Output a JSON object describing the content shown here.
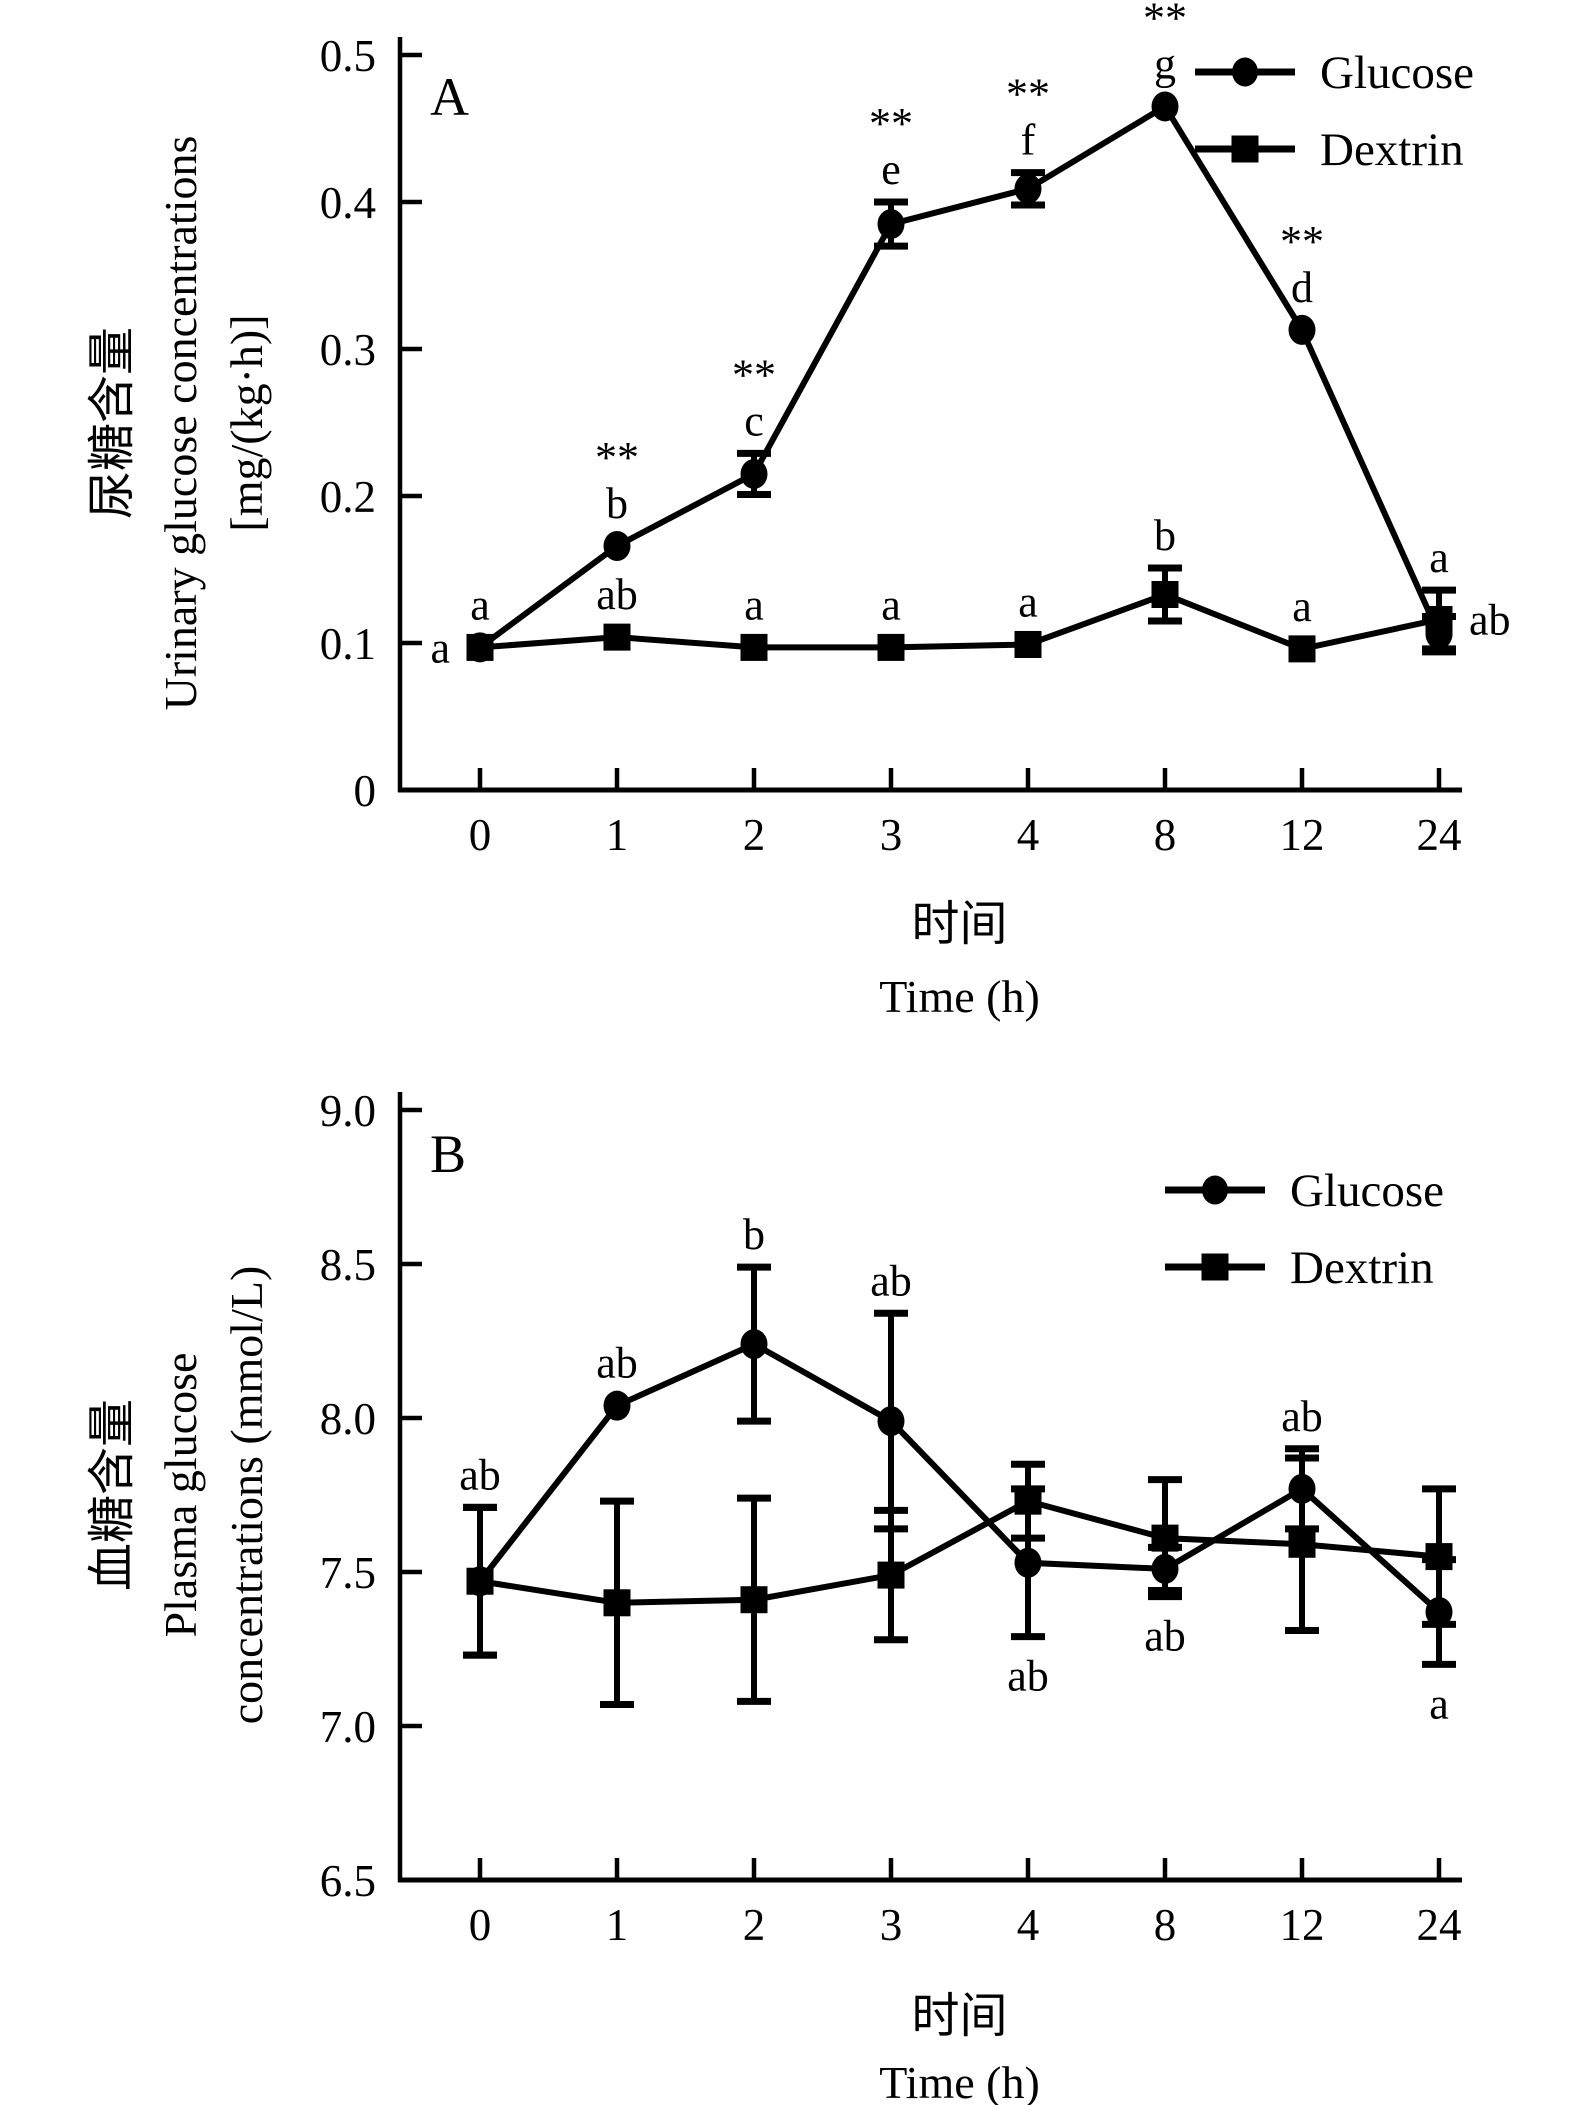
{
  "figure": {
    "background": "#ffffff",
    "ink": "#000000"
  },
  "chart_data": [
    {
      "panel_label": "A",
      "type": "line",
      "x_categories": [
        "0",
        "1",
        "2",
        "3",
        "4",
        "8",
        "12",
        "24"
      ],
      "xlabel_lines": [
        "时间",
        "Time (h)"
      ],
      "ylabel_lines": [
        "尿糖含量",
        "Urinary glucose concentrations",
        "[mg/(kg·h)]"
      ],
      "ylim": [
        0,
        0.5
      ],
      "ytick_labels": [
        "0",
        "0.1",
        "0.2",
        "0.3",
        "0.4",
        "0.5"
      ],
      "legend": [
        {
          "name": "Glucose",
          "marker": "circle"
        },
        {
          "name": "Dextrin",
          "marker": "square"
        }
      ],
      "series": [
        {
          "name": "Glucose",
          "marker": "circle",
          "values": [
            0.097,
            0.166,
            0.215,
            0.385,
            0.409,
            0.465,
            0.313,
            0.106
          ],
          "errors": [
            null,
            null,
            0.014,
            0.015,
            0.011,
            null,
            null,
            0.012
          ],
          "point_labels": [
            {
              "lines": [
                "a"
              ],
              "pos": "left"
            },
            {
              "lines": [
                "**",
                "b"
              ],
              "pos": "above"
            },
            {
              "lines": [
                "**",
                "c"
              ],
              "pos": "above"
            },
            {
              "lines": [
                "**",
                "e"
              ],
              "pos": "above"
            },
            {
              "lines": [
                "**",
                "f"
              ],
              "pos": "above"
            },
            {
              "lines": [
                "**",
                "g"
              ],
              "pos": "above"
            },
            {
              "lines": [
                "**",
                "d"
              ],
              "pos": "above"
            },
            {
              "lines": [
                "a"
              ],
              "pos": "above"
            }
          ]
        },
        {
          "name": "Dextrin",
          "marker": "square",
          "values": [
            0.097,
            0.104,
            0.097,
            0.097,
            0.099,
            0.133,
            0.096,
            0.116
          ],
          "errors": [
            null,
            null,
            null,
            null,
            null,
            0.018,
            null,
            0.02
          ],
          "point_labels": [
            {
              "lines": [
                "a"
              ],
              "pos": "above"
            },
            {
              "lines": [
                "ab"
              ],
              "pos": "above"
            },
            {
              "lines": [
                "a"
              ],
              "pos": "above"
            },
            {
              "lines": [
                "a"
              ],
              "pos": "above"
            },
            {
              "lines": [
                "a"
              ],
              "pos": "above"
            },
            {
              "lines": [
                "b"
              ],
              "pos": "above"
            },
            {
              "lines": [
                "a"
              ],
              "pos": "above"
            },
            {
              "lines": [
                "ab"
              ],
              "pos": "right"
            }
          ]
        }
      ]
    },
    {
      "panel_label": "B",
      "type": "line",
      "x_categories": [
        "0",
        "1",
        "2",
        "3",
        "4",
        "8",
        "12",
        "24"
      ],
      "xlabel_lines": [
        "时间",
        "Time (h)"
      ],
      "ylabel_lines": [
        "血糖含量",
        "Plasma glucose",
        "concentrations (mmol/L)"
      ],
      "ylim": [
        6.5,
        9.0
      ],
      "ytick_labels": [
        "6.5",
        "7.0",
        "7.5",
        "8.0",
        "8.5",
        "9.0"
      ],
      "legend": [
        {
          "name": "Glucose",
          "marker": "circle"
        },
        {
          "name": "Dextrin",
          "marker": "square"
        }
      ],
      "series": [
        {
          "name": "Glucose",
          "marker": "circle",
          "values": [
            7.47,
            8.04,
            8.24,
            7.99,
            7.53,
            7.51,
            7.77,
            7.37
          ],
          "errors": [
            0.24,
            null,
            0.25,
            0.35,
            0.24,
            0.07,
            0.13,
            0.17
          ],
          "point_labels": [
            {
              "lines": [
                "ab"
              ],
              "pos": "above"
            },
            {
              "lines": [
                "ab"
              ],
              "pos": "above"
            },
            {
              "lines": [
                "b"
              ],
              "pos": "above"
            },
            {
              "lines": [
                "ab"
              ],
              "pos": "above"
            },
            {
              "lines": [
                "ab"
              ],
              "pos": "below"
            },
            {
              "lines": [
                "ab"
              ],
              "pos": "below"
            },
            {
              "lines": [
                "ab"
              ],
              "pos": "above"
            },
            {
              "lines": [
                "a"
              ],
              "pos": "below"
            }
          ]
        },
        {
          "name": "Dextrin",
          "marker": "square",
          "values": [
            7.47,
            7.4,
            7.41,
            7.49,
            7.73,
            7.61,
            7.59,
            7.55
          ],
          "errors": [
            0.24,
            0.33,
            0.33,
            0.21,
            0.12,
            0.19,
            0.28,
            0.22
          ],
          "point_labels": [
            null,
            null,
            null,
            null,
            null,
            null,
            null,
            null
          ]
        }
      ]
    }
  ]
}
